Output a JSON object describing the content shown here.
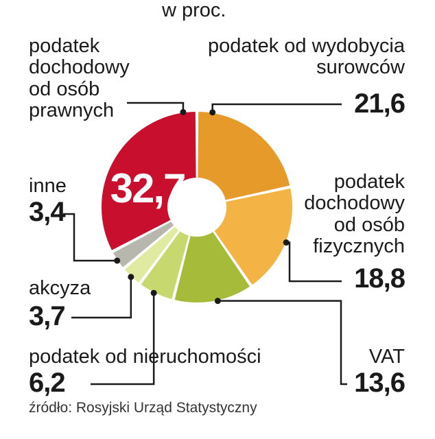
{
  "unit_label": "w proc.",
  "source": "źródło: Rosyjski Urząd Statystyczny",
  "colors": {
    "cit": "#c8102e",
    "mineral": "#e69a2a",
    "pit": "#f3b445",
    "vat": "#a7bb3b",
    "property": "#c7d86f",
    "excise": "#e0eaa0",
    "other": "#b7b7ad",
    "leader": "#1a1a1a"
  },
  "chart_data": {
    "type": "pie",
    "variant": "donut",
    "unit": "w proc.",
    "slices": [
      {
        "label": "podatek od wydobycia surowców",
        "value": 21.6,
        "value_text": "21,6",
        "color": "#e69a2a"
      },
      {
        "label": "podatek dochodowy od osób fizycznych",
        "value": 18.8,
        "value_text": "18,8",
        "color": "#f3b445"
      },
      {
        "label": "VAT",
        "value": 13.6,
        "value_text": "13,6",
        "color": "#a7bb3b"
      },
      {
        "label": "podatek od nieruchomości",
        "value": 6.2,
        "value_text": "6,2",
        "color": "#c7d86f"
      },
      {
        "label": "akcyza",
        "value": 3.7,
        "value_text": "3,7",
        "color": "#e0eaa0"
      },
      {
        "label": "inne",
        "value": 3.4,
        "value_text": "3,4",
        "color": "#b7b7ad"
      },
      {
        "label": "podatek dochodowy od osób prawnych",
        "value": 32.7,
        "value_text": "32,7",
        "color": "#c8102e"
      }
    ]
  }
}
